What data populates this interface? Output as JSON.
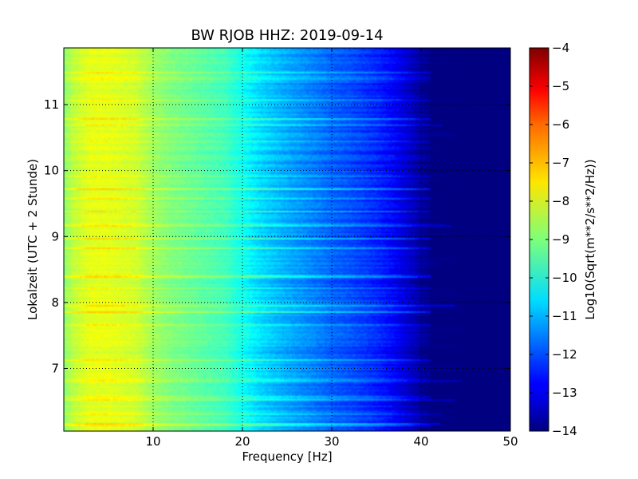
{
  "chart_data": {
    "type": "heatmap",
    "title": "BW RJOB HHZ: 2019-09-14",
    "xlabel": "Frequency [Hz]",
    "ylabel": "Lokalzeit (UTC + 2 Stunde)",
    "xlim": [
      0,
      50
    ],
    "ylim": [
      11.86,
      6.05
    ],
    "x_ticks": [
      10,
      20,
      30,
      40,
      50
    ],
    "y_ticks": [
      7,
      8,
      9,
      10,
      11
    ],
    "grid": true,
    "colormap": "jet",
    "colorbar": {
      "label": "Log10(Sqrt(m**2/s**2/Hz))",
      "range": [
        -14,
        -4
      ],
      "ticks": [
        -4,
        -5,
        -6,
        -7,
        -8,
        -9,
        -10,
        -11,
        -12,
        -13,
        -14
      ]
    },
    "psd_profile": {
      "frequency_hz": [
        0,
        1,
        3,
        5,
        8,
        10,
        12,
        15,
        18,
        20,
        22,
        25,
        28,
        30,
        32,
        35,
        37,
        38,
        39,
        40,
        41,
        42,
        45,
        50
      ],
      "log10_psd": [
        -8.9,
        -8.4,
        -8.0,
        -8.0,
        -8.2,
        -8.7,
        -9.0,
        -9.3,
        -9.6,
        -10.1,
        -10.6,
        -11.1,
        -11.5,
        -11.8,
        -12.0,
        -12.4,
        -12.8,
        -13.1,
        -13.4,
        -13.7,
        -14.0,
        -14.0,
        -14.0,
        -14.0
      ]
    }
  }
}
